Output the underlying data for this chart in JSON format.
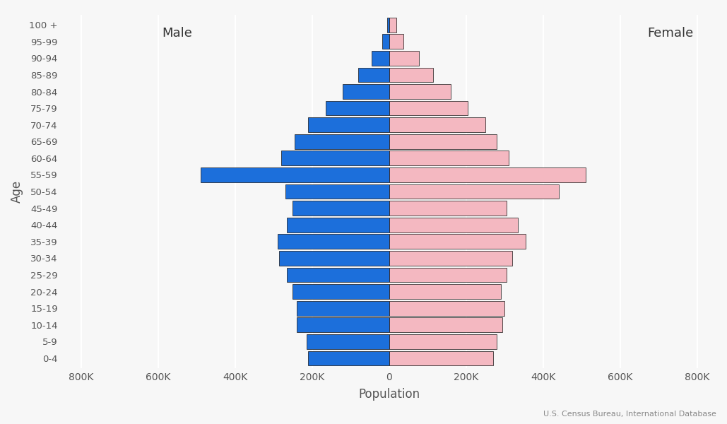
{
  "age_groups_display": [
    "0-4",
    "5-9",
    "10-14",
    "15-19",
    "20-24",
    "25-29",
    "30-34",
    "35-39",
    "40-44",
    "45-49",
    "50-54",
    "55-59",
    "60-64",
    "65-69",
    "70-74",
    "75-79",
    "80-84",
    "85-89",
    "90-94",
    "95-99",
    "100 +"
  ],
  "male": [
    210000,
    215000,
    240000,
    240000,
    250000,
    265000,
    285000,
    290000,
    265000,
    250000,
    270000,
    490000,
    280000,
    245000,
    210000,
    165000,
    120000,
    80000,
    45000,
    18000,
    5000
  ],
  "female": [
    270000,
    280000,
    295000,
    300000,
    290000,
    305000,
    320000,
    355000,
    335000,
    305000,
    440000,
    510000,
    310000,
    280000,
    250000,
    205000,
    160000,
    115000,
    78000,
    38000,
    18000
  ],
  "male_color": "#1c6fdb",
  "female_color": "#f4b8c1",
  "bar_edgecolor": "#111111",
  "background_color": "#f7f7f7",
  "xlabel": "Population",
  "ylabel": "Age",
  "xlim": 850000,
  "male_label": "Male",
  "female_label": "Female",
  "source_text": "U.S. Census Bureau, International Database",
  "tick_values": [
    -800000,
    -600000,
    -400000,
    -200000,
    0,
    200000,
    400000,
    600000,
    800000
  ],
  "tick_labels": [
    "800K",
    "600K",
    "400K",
    "200K",
    "0",
    "200K",
    "400K",
    "600K",
    "800K"
  ]
}
